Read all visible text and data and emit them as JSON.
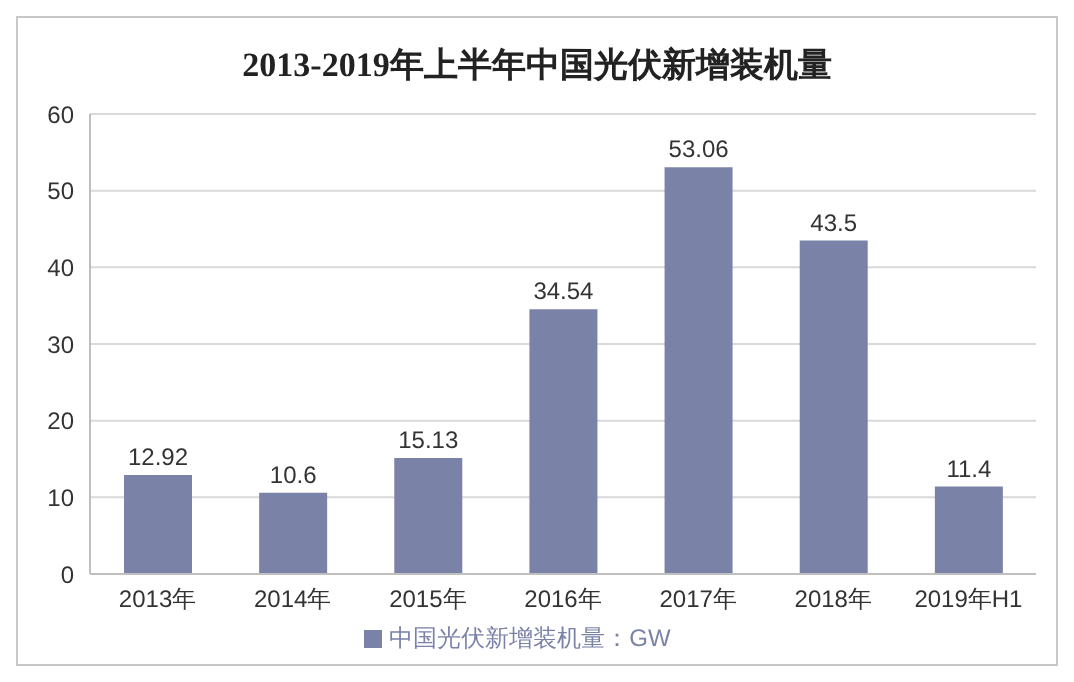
{
  "chart_data": {
    "type": "bar",
    "title": "2013-2019年上半年中国光伏新增装机量",
    "categories": [
      "2013年",
      "2014年",
      "2015年",
      "2016年",
      "2017年",
      "2018年",
      "2019年H1"
    ],
    "series": [
      {
        "name": "中国光伏新增装机量：GW",
        "color": "#7a82a8",
        "values": [
          12.92,
          10.6,
          15.13,
          34.54,
          53.06,
          43.5,
          11.4
        ]
      }
    ],
    "ylim": [
      0,
      60
    ],
    "yticks": [
      0,
      10,
      20,
      30,
      40,
      50,
      60
    ],
    "grid": "y",
    "legend": "bottom",
    "data_labels": true
  }
}
